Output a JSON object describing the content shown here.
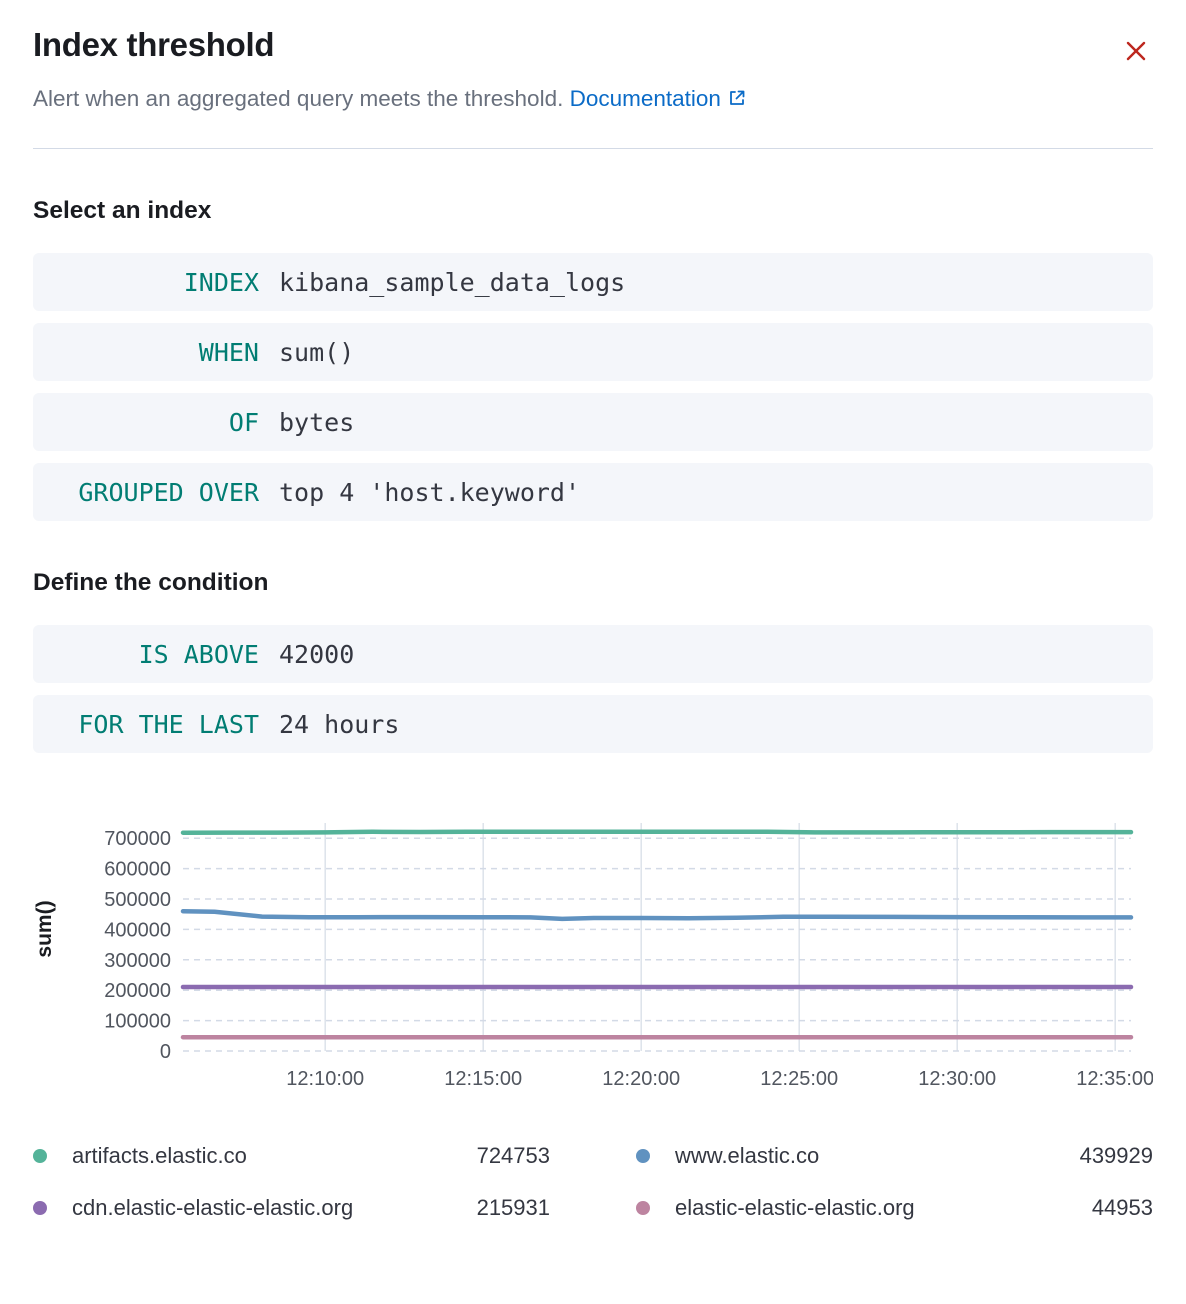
{
  "flyout": {
    "title": "Index threshold",
    "subtitle": "Alert when an aggregated query meets the threshold.",
    "documentation_label": "Documentation"
  },
  "sections": {
    "select_index": "Select an index",
    "define_condition": "Define the condition"
  },
  "expressions": [
    {
      "keyword": "INDEX",
      "value": "kibana_sample_data_logs"
    },
    {
      "keyword": "WHEN",
      "value": "sum()"
    },
    {
      "keyword": "OF",
      "value": "bytes"
    },
    {
      "keyword": "GROUPED OVER",
      "value": "top 4 'host.keyword'"
    }
  ],
  "conditions": [
    {
      "keyword": "IS ABOVE",
      "value": "42000"
    },
    {
      "keyword": "FOR THE LAST",
      "value": "24 hours"
    }
  ],
  "colors": {
    "keyword_teal": "#017D73",
    "link_blue": "#0b6bc7",
    "close_red": "#BD271E",
    "pill_background": "#F4F6FA"
  },
  "chart_data": {
    "type": "line",
    "ylabel": "sum()",
    "ylim": [
      0,
      750000
    ],
    "yticks": [
      0,
      100000,
      200000,
      300000,
      400000,
      500000,
      600000,
      700000
    ],
    "x_domain_minutes": [
      5.5,
      35.5
    ],
    "xticks": [
      {
        "label": "12:10:00",
        "minute": 10
      },
      {
        "label": "12:15:00",
        "minute": 15
      },
      {
        "label": "12:20:00",
        "minute": 20
      },
      {
        "label": "12:25:00",
        "minute": 25
      },
      {
        "label": "12:30:00",
        "minute": 30
      },
      {
        "label": "12:35:00",
        "minute": 35
      }
    ],
    "grid": {
      "horizontal": "dashed",
      "vertical": "solid"
    },
    "legend_position": "bottom",
    "series": [
      {
        "name": "artifacts.elastic.co",
        "color": "#54B399",
        "legend_value": "724753",
        "points": [
          [
            5.5,
            718000
          ],
          [
            7,
            718500
          ],
          [
            8.5,
            718500
          ],
          [
            10,
            719000
          ],
          [
            11.5,
            721000
          ],
          [
            13,
            720500
          ],
          [
            14.5,
            721000
          ],
          [
            16,
            721000
          ],
          [
            18,
            721500
          ],
          [
            20,
            721500
          ],
          [
            22,
            721000
          ],
          [
            24,
            721000
          ],
          [
            25.5,
            719000
          ],
          [
            27,
            719000
          ],
          [
            29,
            719500
          ],
          [
            31,
            719500
          ],
          [
            33,
            720000
          ],
          [
            35.5,
            720000
          ]
        ]
      },
      {
        "name": "www.elastic.co",
        "color": "#6092C0",
        "legend_value": "439929",
        "points": [
          [
            5.5,
            460000
          ],
          [
            6.5,
            458000
          ],
          [
            8,
            442000
          ],
          [
            9.5,
            440000
          ],
          [
            11,
            440000
          ],
          [
            13,
            440500
          ],
          [
            15,
            440000
          ],
          [
            16.5,
            439500
          ],
          [
            17.5,
            434500
          ],
          [
            18.5,
            437500
          ],
          [
            20,
            437500
          ],
          [
            21.5,
            437000
          ],
          [
            23,
            438000
          ],
          [
            24.5,
            441500
          ],
          [
            26,
            441500
          ],
          [
            28,
            441000
          ],
          [
            30,
            440500
          ],
          [
            32,
            440000
          ],
          [
            34,
            439500
          ],
          [
            35.5,
            439500
          ]
        ]
      },
      {
        "name": "cdn.elastic-elastic-elastic.org",
        "color": "#8B6BB0",
        "legend_value": "215931",
        "points": [
          [
            5.5,
            210500
          ],
          [
            15,
            210500
          ],
          [
            25,
            210500
          ],
          [
            35.5,
            210500
          ]
        ]
      },
      {
        "name": "elastic-elastic-elastic.org",
        "color": "#BD84A0",
        "legend_value": "44953",
        "points": [
          [
            5.5,
            45500
          ],
          [
            15,
            45500
          ],
          [
            25,
            45500
          ],
          [
            35.5,
            45500
          ]
        ]
      }
    ]
  }
}
